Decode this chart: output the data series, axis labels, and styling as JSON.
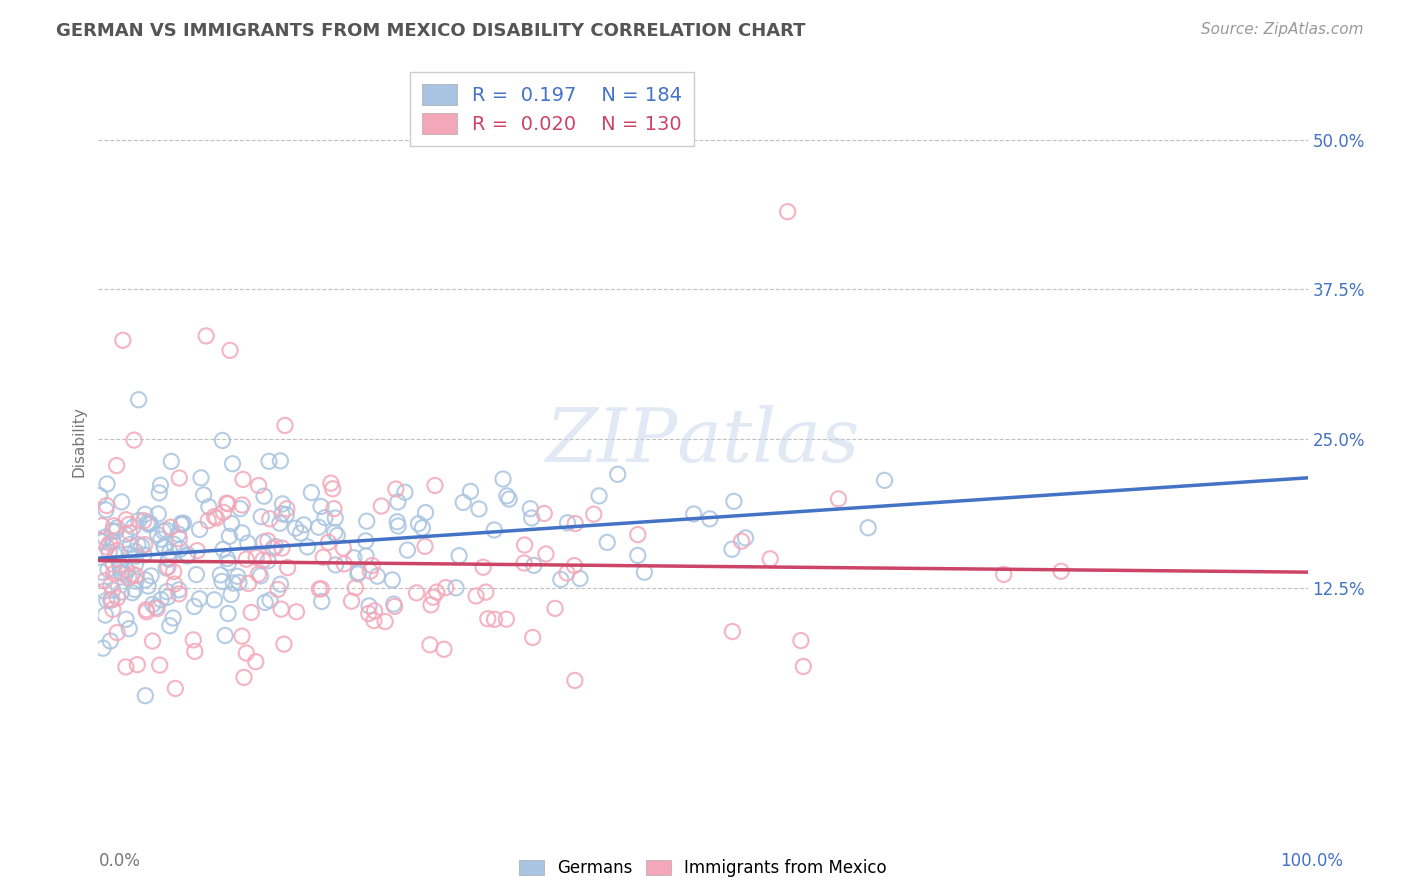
{
  "title": "GERMAN VS IMMIGRANTS FROM MEXICO DISABILITY CORRELATION CHART",
  "source": "Source: ZipAtlas.com",
  "ylabel": "Disability",
  "xlim": [
    0,
    1
  ],
  "ylim": [
    -0.07,
    0.565
  ],
  "yticks": [
    0.125,
    0.25,
    0.375,
    0.5
  ],
  "ytick_labels": [
    "12.5%",
    "25.0%",
    "37.5%",
    "50.0%"
  ],
  "blue_color": "#a8c4e0",
  "blue_edge_color": "#6699cc",
  "blue_line_color": "#4472c4",
  "pink_color": "#f4a7b9",
  "pink_edge_color": "#cc6688",
  "pink_line_color": "#cc4466",
  "blue_R": 0.197,
  "blue_N": 184,
  "pink_R": 0.02,
  "pink_N": 130,
  "legend_labels": [
    "Germans",
    "Immigrants from Mexico"
  ],
  "background_color": "#ffffff",
  "grid_color": "#bbbbbb",
  "right_tick_color": "#4472c4",
  "left_label_color": "#777777",
  "title_color": "#555555"
}
